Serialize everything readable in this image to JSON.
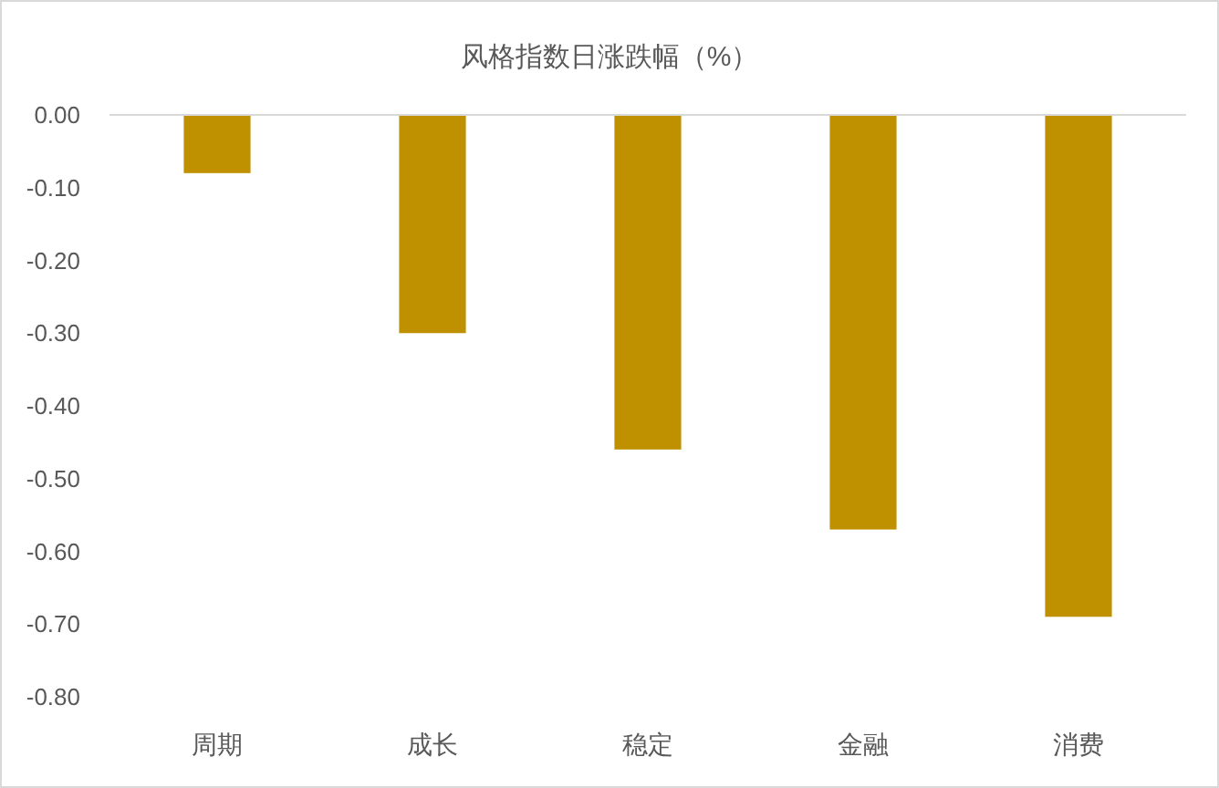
{
  "chart_data": {
    "type": "bar",
    "title": "风格指数日涨跌幅（%）",
    "categories": [
      "周期",
      "成长",
      "稳定",
      "金融",
      "消费"
    ],
    "values": [
      -0.08,
      -0.3,
      -0.46,
      -0.57,
      -0.69
    ],
    "color": "#bf9000",
    "ylim": [
      -0.8,
      0
    ],
    "yticks": [
      {
        "value": 0,
        "label": "0.00"
      },
      {
        "value": -0.1,
        "label": "-0.10"
      },
      {
        "value": -0.2,
        "label": "-0.20"
      },
      {
        "value": -0.3,
        "label": "-0.30"
      },
      {
        "value": -0.4,
        "label": "-0.40"
      },
      {
        "value": -0.5,
        "label": "-0.50"
      },
      {
        "value": -0.6,
        "label": "-0.60"
      },
      {
        "value": -0.7,
        "label": "-0.70"
      },
      {
        "value": -0.8,
        "label": "-0.80"
      }
    ],
    "grid": false
  }
}
